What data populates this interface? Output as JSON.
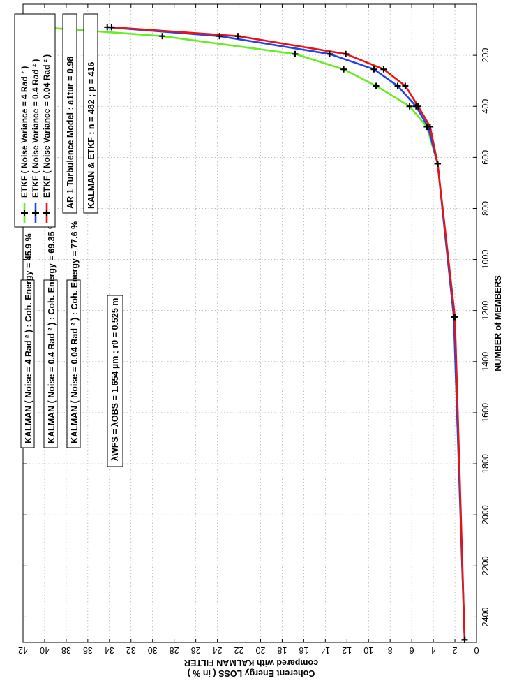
{
  "chart_data": {
    "type": "line",
    "rotated": "90deg-counterclockwise",
    "xlabel": "NUMBER  of  MEMBERS",
    "ylabel_lines": [
      "Coherent  Energy  LOSS  ( in % )",
      "compared  with  KALMAN  FILTER"
    ],
    "xlim": [
      0,
      2500
    ],
    "ylim": [
      0,
      42
    ],
    "xticks": [
      200,
      400,
      600,
      800,
      1000,
      1200,
      1400,
      1600,
      1800,
      2000,
      2200,
      2400
    ],
    "yticks": [
      0,
      2,
      4,
      6,
      8,
      10,
      12,
      14,
      16,
      18,
      20,
      22,
      24,
      26,
      28,
      30,
      32,
      34,
      36,
      38,
      40,
      42
    ],
    "grid": true,
    "series": [
      {
        "name": "ETKF  ( Noise  Variance =  4  Rad ² )",
        "color": "#66ee22",
        "x": [
          90,
          125,
          195,
          255,
          320,
          400,
          480,
          625,
          1225,
          2490
        ],
        "y": [
          40.4,
          29.1,
          16.8,
          12.3,
          9.3,
          6.2,
          4.6,
          3.6,
          2.1,
          1.1
        ]
      },
      {
        "name": "ETKF  ( Noise  Variance =  0.4  Rad ² )",
        "color": "#2244ee",
        "x": [
          90,
          125,
          195,
          255,
          320,
          400,
          480,
          625,
          1225,
          2490
        ],
        "y": [
          34.2,
          23.8,
          13.6,
          9.5,
          7.3,
          5.6,
          4.5,
          3.6,
          2.1,
          1.1
        ]
      },
      {
        "name": "ETKF  ( Noise  Variance =  0.04 Rad ² )",
        "color": "#ee1111",
        "x": [
          90,
          125,
          195,
          255,
          320,
          400,
          480,
          625,
          1225,
          2490
        ],
        "y": [
          33.8,
          22.1,
          12.1,
          8.6,
          6.6,
          5.4,
          4.3,
          3.6,
          2.0,
          1.1
        ]
      }
    ],
    "annotations": {
      "kalman_boxes": [
        "KALMAN  ( Noise =  4  Rad ²  )  :  Coh. Energy = 45.9  %",
        "KALMAN  ( Noise = 0.4  Rad ² ) : Coh. Energy = 69.35  %",
        "KALMAN  ( Noise = 0.04 Rad ² ) : Coh. Energy = 77.6  %"
      ],
      "wavelength_label": "λWFS = λOBS = 1.654 µm   ;   r0 = 0.525 m",
      "turbulence_box": "AR 1  Turbulence  Model  :  a1tur  =  0.98",
      "params_box": "KALMAN  &  ETKF  :  n  =  482   ;   p  =  416"
    }
  }
}
